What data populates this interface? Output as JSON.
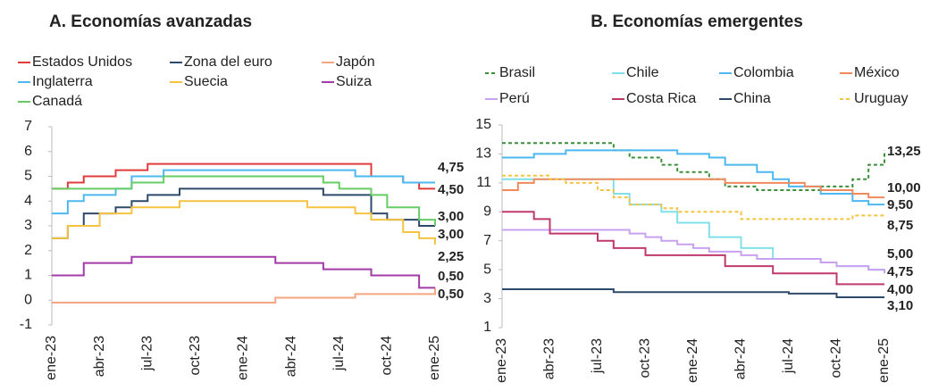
{
  "chart_data": [
    {
      "type": "line",
      "step": true,
      "title": "A. Economías avanzadas",
      "categories": [
        "ene-23",
        null,
        null,
        "abr-23",
        null,
        null,
        "jul-23",
        null,
        null,
        "oct-23",
        null,
        null,
        "ene-24",
        null,
        null,
        "abr-24",
        null,
        null,
        "jul-24",
        null,
        null,
        "oct-24",
        null,
        null,
        "ene-25"
      ],
      "ylim": [
        -1,
        7
      ],
      "yticks": [
        -1,
        0,
        1,
        2,
        3,
        4,
        5,
        6,
        7
      ],
      "series": [
        {
          "name": "Estados Unidos",
          "color": "#e03c3c",
          "values": [
            4.5,
            4.75,
            5.0,
            5.0,
            5.25,
            5.25,
            5.5,
            5.5,
            5.5,
            5.5,
            5.5,
            5.5,
            5.5,
            5.5,
            5.5,
            5.5,
            5.5,
            5.5,
            5.5,
            5.5,
            5.0,
            5.0,
            4.75,
            4.5,
            4.5
          ],
          "value_labels": [
            null,
            null,
            null,
            null,
            null,
            null,
            null,
            null,
            null,
            null,
            null,
            null,
            null,
            null,
            null,
            null,
            null,
            null,
            null,
            null,
            null,
            null,
            null,
            null,
            "4,50"
          ]
        },
        {
          "name": "Zona del euro",
          "color": "#2e4a6b",
          "values": [
            2.5,
            3.0,
            3.5,
            3.5,
            3.75,
            4.0,
            4.25,
            4.25,
            4.5,
            4.5,
            4.5,
            4.5,
            4.5,
            4.5,
            4.5,
            4.5,
            4.5,
            4.25,
            4.25,
            4.25,
            3.5,
            3.25,
            3.25,
            3.0,
            3.0
          ],
          "value_labels": [
            null,
            null,
            null,
            null,
            null,
            null,
            null,
            null,
            null,
            null,
            null,
            null,
            null,
            null,
            null,
            null,
            null,
            null,
            null,
            null,
            null,
            null,
            null,
            null,
            "3,00"
          ]
        },
        {
          "name": "Japón",
          "color": "#f4a582",
          "values": [
            -0.1,
            -0.1,
            -0.1,
            -0.1,
            -0.1,
            -0.1,
            -0.1,
            -0.1,
            -0.1,
            -0.1,
            -0.1,
            -0.1,
            -0.1,
            -0.1,
            0.1,
            0.1,
            0.1,
            0.1,
            0.1,
            0.25,
            0.25,
            0.25,
            0.25,
            0.25,
            0.5
          ],
          "value_labels": [
            null,
            null,
            null,
            null,
            null,
            null,
            null,
            null,
            null,
            null,
            null,
            null,
            null,
            null,
            null,
            null,
            null,
            null,
            null,
            null,
            null,
            null,
            null,
            null,
            "0,50"
          ]
        },
        {
          "name": "Inglaterra",
          "color": "#4db8f0",
          "values": [
            3.5,
            4.0,
            4.25,
            4.25,
            4.5,
            5.0,
            5.0,
            5.25,
            5.25,
            5.25,
            5.25,
            5.25,
            5.25,
            5.25,
            5.25,
            5.25,
            5.25,
            5.25,
            5.25,
            5.0,
            5.0,
            5.0,
            4.75,
            4.75,
            4.75
          ],
          "value_labels": [
            null,
            null,
            null,
            null,
            null,
            null,
            null,
            null,
            null,
            null,
            null,
            null,
            null,
            null,
            null,
            null,
            null,
            null,
            null,
            null,
            null,
            null,
            null,
            null,
            "4,75"
          ]
        },
        {
          "name": "Suecia",
          "color": "#f5c342",
          "values": [
            2.5,
            3.0,
            3.0,
            3.5,
            3.5,
            3.75,
            3.75,
            3.75,
            4.0,
            4.0,
            4.0,
            4.0,
            4.0,
            4.0,
            4.0,
            4.0,
            3.75,
            3.75,
            3.75,
            3.5,
            3.25,
            3.25,
            2.75,
            2.5,
            2.25
          ],
          "value_labels": [
            null,
            null,
            null,
            null,
            null,
            null,
            null,
            null,
            null,
            null,
            null,
            null,
            null,
            null,
            null,
            null,
            null,
            null,
            null,
            null,
            null,
            null,
            null,
            null,
            "2,25"
          ]
        },
        {
          "name": "Suiza",
          "color": "#a23aa8",
          "values": [
            1.0,
            1.0,
            1.5,
            1.5,
            1.5,
            1.75,
            1.75,
            1.75,
            1.75,
            1.75,
            1.75,
            1.75,
            1.75,
            1.75,
            1.5,
            1.5,
            1.5,
            1.25,
            1.25,
            1.25,
            1.0,
            1.0,
            1.0,
            0.5,
            0.5
          ],
          "value_labels": [
            null,
            null,
            null,
            null,
            null,
            null,
            null,
            null,
            null,
            null,
            null,
            null,
            null,
            null,
            null,
            null,
            null,
            null,
            null,
            null,
            null,
            null,
            null,
            null,
            "0,50"
          ]
        },
        {
          "name": "Canadá",
          "color": "#66cc66",
          "values": [
            4.5,
            4.5,
            4.5,
            4.5,
            4.5,
            4.75,
            4.75,
            5.0,
            5.0,
            5.0,
            5.0,
            5.0,
            5.0,
            5.0,
            5.0,
            5.0,
            5.0,
            4.75,
            4.5,
            4.5,
            4.25,
            3.75,
            3.75,
            3.25,
            3.0
          ],
          "value_labels": [
            null,
            null,
            null,
            null,
            null,
            null,
            null,
            null,
            null,
            null,
            null,
            null,
            null,
            null,
            null,
            null,
            null,
            null,
            null,
            null,
            null,
            null,
            null,
            null,
            "3,00"
          ]
        }
      ]
    },
    {
      "type": "line",
      "step": true,
      "title": "B. Economías emergentes",
      "categories": [
        "ene-23",
        null,
        null,
        "abr-23",
        null,
        null,
        "jul-23",
        null,
        null,
        "oct-23",
        null,
        null,
        "ene-24",
        null,
        null,
        "abr-24",
        null,
        null,
        "jul-24",
        null,
        null,
        "oct-24",
        null,
        null,
        "ene-25"
      ],
      "ylim": [
        1,
        15
      ],
      "yticks": [
        1,
        3,
        5,
        7,
        9,
        11,
        13,
        15
      ],
      "series": [
        {
          "name": "Brasil",
          "color": "#3a8f3a",
          "dashed": true,
          "values": [
            13.75,
            13.75,
            13.75,
            13.75,
            13.75,
            13.75,
            13.75,
            13.25,
            12.75,
            12.75,
            12.25,
            11.75,
            11.75,
            11.25,
            10.75,
            10.75,
            10.5,
            10.5,
            10.5,
            10.5,
            10.75,
            10.75,
            11.25,
            12.25,
            13.25
          ],
          "value_labels": [
            null,
            null,
            null,
            null,
            null,
            null,
            null,
            null,
            null,
            null,
            null,
            null,
            null,
            null,
            null,
            null,
            null,
            null,
            null,
            null,
            null,
            null,
            null,
            null,
            "13,25"
          ]
        },
        {
          "name": "Chile",
          "color": "#7fe0e8",
          "values": [
            11.25,
            11.25,
            11.25,
            11.25,
            11.25,
            11.25,
            11.25,
            10.25,
            9.5,
            9.5,
            9.0,
            8.25,
            8.25,
            7.25,
            7.25,
            6.5,
            6.5,
            5.75,
            5.75,
            5.75,
            5.5,
            5.25,
            5.25,
            5.0,
            5.0
          ],
          "value_labels": [
            null,
            null,
            null,
            null,
            null,
            null,
            null,
            null,
            null,
            null,
            null,
            null,
            null,
            null,
            null,
            null,
            null,
            null,
            null,
            null,
            null,
            null,
            null,
            null,
            "5,00"
          ]
        },
        {
          "name": "Colombia",
          "color": "#4db8f0",
          "values": [
            12.75,
            12.75,
            13.0,
            13.0,
            13.25,
            13.25,
            13.25,
            13.25,
            13.25,
            13.25,
            13.25,
            13.0,
            13.0,
            12.75,
            12.25,
            12.25,
            11.75,
            11.25,
            10.75,
            10.75,
            10.25,
            10.25,
            9.75,
            9.5,
            9.5
          ],
          "value_labels": [
            null,
            null,
            null,
            null,
            null,
            null,
            null,
            null,
            null,
            null,
            null,
            null,
            null,
            null,
            null,
            null,
            null,
            null,
            null,
            null,
            null,
            null,
            null,
            null,
            "9,50"
          ]
        },
        {
          "name": "México",
          "color": "#f08a5d",
          "values": [
            10.5,
            11.0,
            11.25,
            11.25,
            11.25,
            11.25,
            11.25,
            11.25,
            11.25,
            11.25,
            11.25,
            11.25,
            11.25,
            11.25,
            11.0,
            11.0,
            11.0,
            11.0,
            11.0,
            10.75,
            10.5,
            10.5,
            10.25,
            10.0,
            10.0
          ],
          "value_labels": [
            null,
            null,
            null,
            null,
            null,
            null,
            null,
            null,
            null,
            null,
            null,
            null,
            null,
            null,
            null,
            null,
            null,
            null,
            null,
            null,
            null,
            null,
            null,
            null,
            "10,00"
          ]
        },
        {
          "name": "Perú",
          "color": "#c8a2f0",
          "values": [
            7.75,
            7.75,
            7.75,
            7.75,
            7.75,
            7.75,
            7.75,
            7.75,
            7.5,
            7.25,
            7.0,
            6.75,
            6.5,
            6.25,
            6.25,
            6.0,
            5.75,
            5.75,
            5.75,
            5.75,
            5.5,
            5.25,
            5.25,
            5.0,
            4.75
          ],
          "value_labels": [
            null,
            null,
            null,
            null,
            null,
            null,
            null,
            null,
            null,
            null,
            null,
            null,
            null,
            null,
            null,
            null,
            null,
            null,
            null,
            null,
            null,
            null,
            null,
            null,
            "4,75"
          ]
        },
        {
          "name": "Costa Rica",
          "color": "#c0396b",
          "values": [
            9.0,
            9.0,
            8.5,
            7.5,
            7.5,
            7.5,
            7.0,
            6.5,
            6.5,
            6.0,
            6.0,
            6.0,
            6.0,
            6.0,
            5.25,
            5.25,
            5.25,
            4.75,
            4.75,
            4.75,
            4.75,
            4.0,
            4.0,
            4.0,
            4.0
          ],
          "value_labels": [
            null,
            null,
            null,
            null,
            null,
            null,
            null,
            null,
            null,
            null,
            null,
            null,
            null,
            null,
            null,
            null,
            null,
            null,
            null,
            null,
            null,
            null,
            null,
            null,
            "4,00"
          ]
        },
        {
          "name": "China",
          "color": "#2e4a6b",
          "values": [
            3.65,
            3.65,
            3.65,
            3.65,
            3.65,
            3.65,
            3.65,
            3.45,
            3.45,
            3.45,
            3.45,
            3.45,
            3.45,
            3.45,
            3.45,
            3.45,
            3.45,
            3.45,
            3.35,
            3.35,
            3.35,
            3.1,
            3.1,
            3.1,
            3.1
          ],
          "value_labels": [
            null,
            null,
            null,
            null,
            null,
            null,
            null,
            null,
            null,
            null,
            null,
            null,
            null,
            null,
            null,
            null,
            null,
            null,
            null,
            null,
            null,
            null,
            null,
            null,
            "3,10"
          ]
        },
        {
          "name": "Uruguay",
          "color": "#f5c342",
          "dashed": true,
          "values": [
            11.5,
            11.5,
            11.5,
            11.25,
            11.0,
            11.0,
            10.5,
            10.0,
            9.5,
            9.5,
            9.25,
            9.0,
            9.0,
            9.0,
            9.0,
            8.5,
            8.5,
            8.5,
            8.5,
            8.5,
            8.5,
            8.5,
            8.75,
            8.75,
            8.75
          ],
          "value_labels": [
            null,
            null,
            null,
            null,
            null,
            null,
            null,
            null,
            null,
            null,
            null,
            null,
            null,
            null,
            null,
            null,
            null,
            null,
            null,
            null,
            null,
            null,
            null,
            null,
            "8,75"
          ]
        }
      ]
    }
  ]
}
